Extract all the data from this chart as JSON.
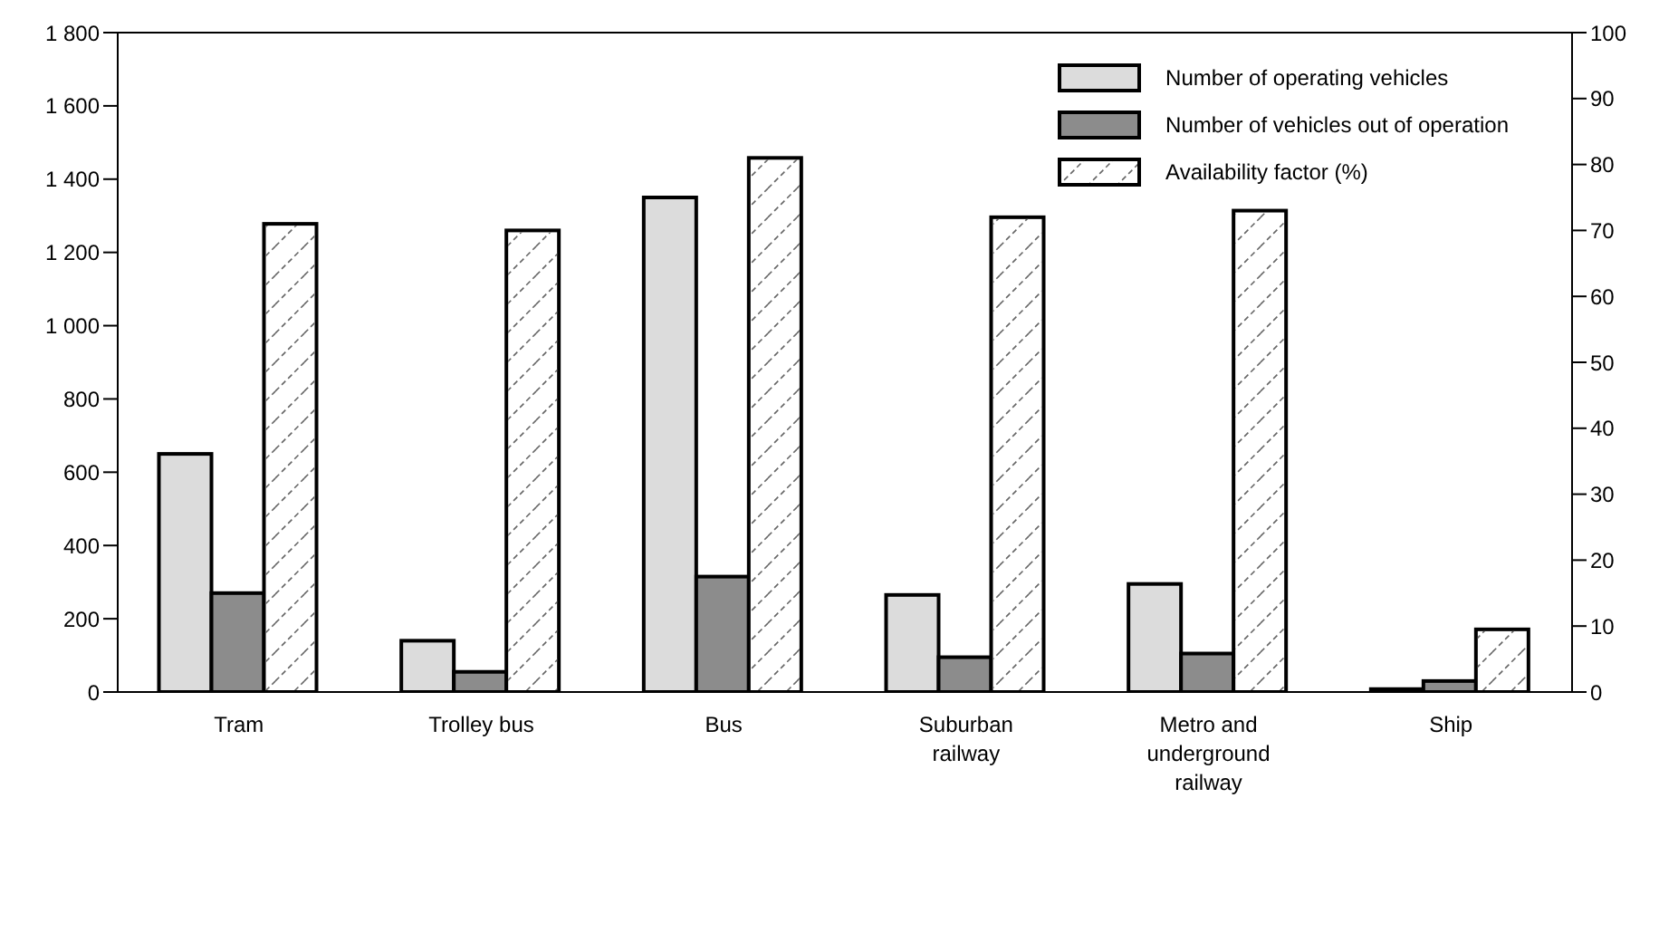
{
  "chart_data": {
    "type": "bar",
    "categories": [
      "Tram",
      "Trolley bus",
      "Bus",
      "Suburban railway",
      "Metro and underground railway",
      "Ship"
    ],
    "series": [
      {
        "name": "Number of operating vehicles",
        "color": "#dcdcdc",
        "values": [
          650,
          140,
          1350,
          265,
          295,
          8
        ]
      },
      {
        "name": "Number of vehicles out of operation",
        "color": "#8c8c8c",
        "values": [
          270,
          55,
          315,
          95,
          105,
          30
        ]
      },
      {
        "name": "Availability factor (%)",
        "color": "#ffffff",
        "axis": "y2",
        "values": [
          71,
          70,
          81,
          72,
          73,
          9.5
        ]
      }
    ],
    "ylim": [
      0,
      1800
    ],
    "yticks": [
      0,
      200,
      400,
      600,
      800,
      {
        "value": 1000,
        "label": "1 000"
      },
      {
        "value": 1200,
        "label": "1 200"
      },
      {
        "value": 1400,
        "label": "1 400"
      },
      {
        "value": 1600,
        "label": "1 600"
      },
      {
        "value": 1800,
        "label": "1 800"
      }
    ],
    "y2lim": [
      0,
      100
    ],
    "y2ticks": [
      0,
      10,
      20,
      30,
      40,
      50,
      60,
      70,
      80,
      90,
      100
    ],
    "legend": "top right"
  }
}
